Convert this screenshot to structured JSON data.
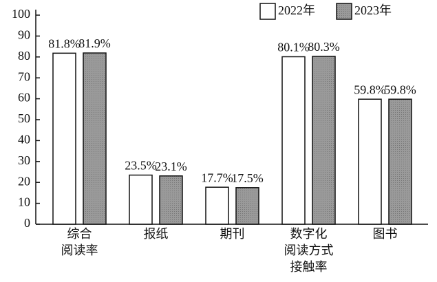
{
  "chart_data": {
    "type": "bar",
    "categories": [
      "综合\n阅读率",
      "报纸",
      "期刊",
      "数字化\n阅读方式\n接触率",
      "图书"
    ],
    "series": [
      {
        "name": "2022年",
        "color": "#ffffff",
        "values": [
          81.8,
          23.5,
          17.7,
          80.1,
          59.8
        ],
        "value_labels": [
          "81.8%",
          "23.5%",
          "17.7%",
          "80.1%",
          "59.8%"
        ]
      },
      {
        "name": "2023年",
        "color": "#9a9a9a",
        "values": [
          81.9,
          23.1,
          17.5,
          80.3,
          59.8
        ],
        "value_labels": [
          "81.9%",
          "23.1%",
          "17.5%",
          "80.3%",
          "59.8%"
        ]
      }
    ],
    "ylim": [
      0,
      100
    ],
    "yticks": [
      0,
      10,
      20,
      30,
      40,
      50,
      60,
      70,
      80,
      90,
      100
    ],
    "legend": "top-right"
  }
}
